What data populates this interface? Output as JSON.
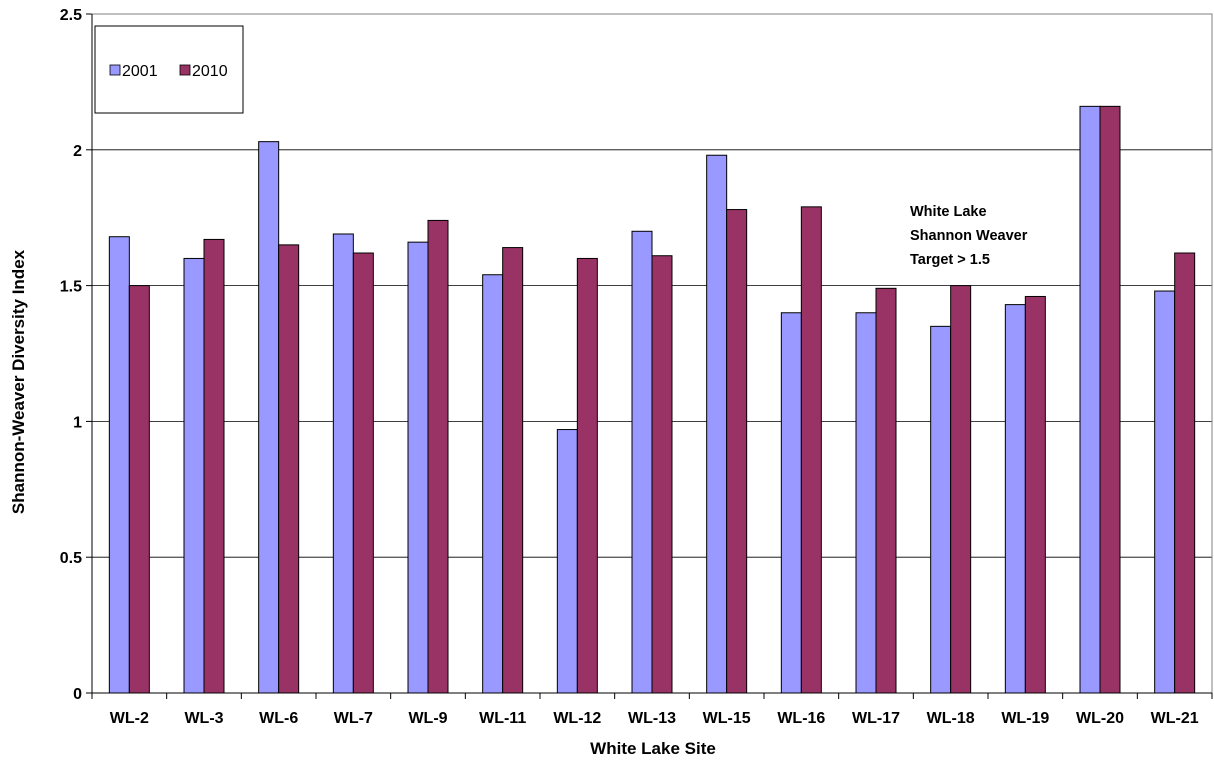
{
  "chart_data": {
    "type": "bar",
    "xlabel": "White Lake Site",
    "ylabel": "Shannon-Weaver Diversity Index",
    "ylim": [
      0,
      2.5
    ],
    "yticks": [
      0,
      0.5,
      1,
      1.5,
      2,
      2.5
    ],
    "ytick_labels": [
      "0",
      "0.5",
      "1",
      "1.5",
      "2",
      "2.5"
    ],
    "grid": true,
    "legend_position": "top-left",
    "categories": [
      "WL-2",
      "WL-3",
      "WL-6",
      "WL-7",
      "WL-9",
      "WL-11",
      "WL-12",
      "WL-13",
      "WL-15",
      "WL-16",
      "WL-17",
      "WL-18",
      "WL-19",
      "WL-20",
      "WL-21"
    ],
    "series": [
      {
        "name": "2001",
        "color": "#9999ff",
        "values": [
          1.68,
          1.6,
          2.03,
          1.69,
          1.66,
          1.54,
          0.97,
          1.7,
          1.98,
          1.4,
          1.4,
          1.35,
          1.43,
          2.16,
          1.48
        ]
      },
      {
        "name": "2010",
        "color": "#993366",
        "values": [
          1.5,
          1.67,
          1.65,
          1.62,
          1.74,
          1.64,
          1.6,
          1.61,
          1.78,
          1.79,
          1.49,
          1.5,
          1.46,
          2.16,
          1.62
        ]
      }
    ],
    "annotation": [
      "White Lake",
      "Shannon Weaver",
      "Target > 1.5"
    ]
  }
}
